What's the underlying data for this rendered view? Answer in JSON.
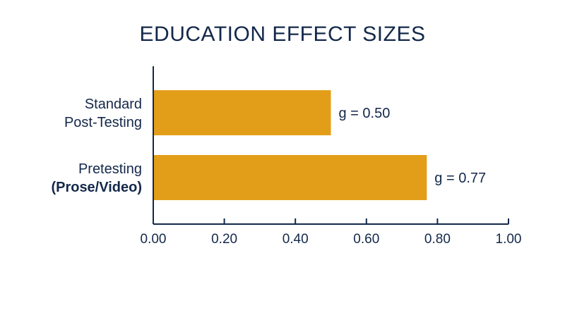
{
  "chart_data": {
    "type": "bar",
    "orientation": "horizontal",
    "title": "EDUCATION EFFECT SIZES",
    "xlabel": "",
    "ylabel": "",
    "categories": [
      {
        "lines": [
          "Standard",
          "Post-Testing"
        ],
        "bold": [
          false,
          false
        ]
      },
      {
        "lines": [
          "Pretesting",
          "(Prose/Video)"
        ],
        "bold": [
          false,
          true
        ]
      }
    ],
    "values": [
      0.5,
      0.77
    ],
    "data_labels": [
      "g = 0.50",
      "g = 0.77"
    ],
    "xlim": [
      0.0,
      1.0
    ],
    "x_ticks": [
      0.0,
      0.2,
      0.4,
      0.6,
      0.8,
      1.0
    ],
    "x_tick_labels": [
      "0.00",
      "0.20",
      "0.40",
      "0.60",
      "0.80",
      "1.00"
    ],
    "grid": false,
    "bar_color": "#E39E19",
    "text_color": "#13284A",
    "axis_color": "#13284A"
  }
}
